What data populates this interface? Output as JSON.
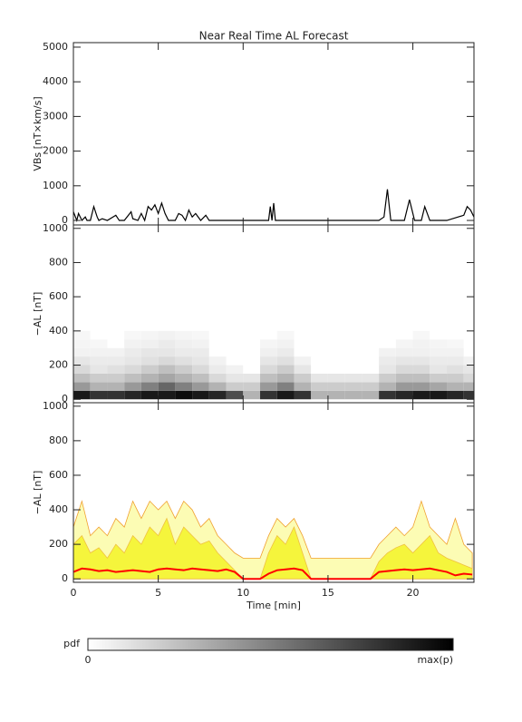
{
  "chart_data": [
    {
      "type": "line",
      "title": "Near Real Time AL Forecast",
      "y_label": "VBs [nT×km/s]",
      "xlim": [
        0,
        23.6
      ],
      "xticks": [
        0,
        5,
        10,
        15,
        20
      ],
      "ylim": [
        -130,
        5130
      ],
      "yticks": [
        0,
        1000,
        2000,
        3000,
        4000,
        5000
      ],
      "x": [
        0,
        0.2,
        0.3,
        0.5,
        0.7,
        0.8,
        1.0,
        1.2,
        1.4,
        1.5,
        1.7,
        2.0,
        2.5,
        2.7,
        3.0,
        3.4,
        3.5,
        3.8,
        4.0,
        4.2,
        4.4,
        4.6,
        4.8,
        5.0,
        5.2,
        5.4,
        5.6,
        6.0,
        6.2,
        6.4,
        6.6,
        6.8,
        7.0,
        7.2,
        7.5,
        7.8,
        8.0,
        11.5,
        11.6,
        11.7,
        11.8,
        11.9,
        12.5,
        18.0,
        18.3,
        18.5,
        18.7,
        19.5,
        19.8,
        20.1,
        20.5,
        20.7,
        21.0,
        22.0,
        23.0,
        23.2,
        23.4,
        23.6
      ],
      "series": [
        {
          "color": "#000000",
          "values": [
            250,
            0,
            200,
            0,
            100,
            0,
            0,
            400,
            100,
            0,
            50,
            0,
            150,
            0,
            0,
            250,
            50,
            0,
            200,
            0,
            400,
            300,
            450,
            200,
            500,
            200,
            0,
            0,
            200,
            150,
            0,
            300,
            100,
            200,
            0,
            150,
            0,
            0,
            400,
            0,
            500,
            0,
            0,
            0,
            100,
            900,
            0,
            0,
            600,
            0,
            0,
            400,
            0,
            0,
            150,
            400,
            300,
            100
          ]
        }
      ]
    },
    {
      "type": "heatmap",
      "y_label": "−AL [nT]",
      "xlim": [
        0,
        23.6
      ],
      "xticks": [
        0,
        5,
        10,
        15,
        20
      ],
      "ylim": [
        -20,
        1020
      ],
      "yticks": [
        0,
        200,
        400,
        600,
        800,
        1000
      ],
      "x_bins": [
        0,
        1,
        2,
        3,
        4,
        5,
        6,
        7,
        8,
        9,
        10,
        11,
        12,
        13,
        14,
        15,
        16,
        17,
        18,
        19,
        20,
        21,
        22,
        23,
        24
      ],
      "y_bins": [
        0,
        50,
        100,
        150,
        200,
        250,
        300,
        350,
        400
      ],
      "z": [
        [
          0.9,
          0.8,
          0.8,
          0.85,
          0.9,
          0.9,
          0.95,
          0.9,
          0.85,
          0.7,
          0.3,
          0.8,
          0.9,
          0.8,
          0.3,
          0.3,
          0.3,
          0.3,
          0.8,
          0.85,
          0.9,
          0.9,
          0.85,
          0.8
        ],
        [
          0.4,
          0.3,
          0.3,
          0.4,
          0.5,
          0.6,
          0.5,
          0.4,
          0.3,
          0.2,
          0.2,
          0.4,
          0.5,
          0.3,
          0.2,
          0.2,
          0.2,
          0.2,
          0.3,
          0.4,
          0.4,
          0.35,
          0.3,
          0.3
        ],
        [
          0.25,
          0.2,
          0.2,
          0.25,
          0.3,
          0.35,
          0.3,
          0.25,
          0.15,
          0.1,
          0.1,
          0.25,
          0.3,
          0.2,
          0.1,
          0.1,
          0.1,
          0.1,
          0.2,
          0.25,
          0.25,
          0.2,
          0.2,
          0.15
        ],
        [
          0.15,
          0.1,
          0.12,
          0.15,
          0.2,
          0.25,
          0.2,
          0.15,
          0.08,
          0.05,
          0,
          0.15,
          0.2,
          0.1,
          0,
          0,
          0,
          0,
          0.1,
          0.15,
          0.15,
          0.1,
          0.12,
          0.1
        ],
        [
          0.1,
          0.08,
          0.08,
          0.1,
          0.12,
          0.15,
          0.12,
          0.1,
          0.05,
          0,
          0,
          0.1,
          0.12,
          0.05,
          0,
          0,
          0,
          0,
          0.08,
          0.1,
          0.1,
          0.08,
          0.08,
          0.05
        ],
        [
          0.05,
          0.05,
          0.05,
          0.08,
          0.1,
          0.1,
          0.08,
          0.08,
          0,
          0,
          0,
          0.06,
          0.08,
          0,
          0,
          0,
          0,
          0,
          0.05,
          0.06,
          0.06,
          0.05,
          0.05,
          0
        ],
        [
          0.04,
          0.03,
          0,
          0.05,
          0.06,
          0.08,
          0.06,
          0.05,
          0,
          0,
          0,
          0.04,
          0.05,
          0,
          0,
          0,
          0,
          0,
          0,
          0.04,
          0.05,
          0.04,
          0.03,
          0
        ],
        [
          0.03,
          0,
          0,
          0.03,
          0.04,
          0.05,
          0.04,
          0.03,
          0,
          0,
          0,
          0,
          0.03,
          0,
          0,
          0,
          0,
          0,
          0,
          0,
          0.03,
          0,
          0,
          0
        ]
      ],
      "colorbar": {
        "label": "pdf",
        "min_label": "0",
        "max_label": "max(p)"
      }
    },
    {
      "type": "area",
      "y_label": "−AL [nT]",
      "x_label": "Time [min]",
      "xlim": [
        0,
        23.6
      ],
      "xticks": [
        0,
        5,
        10,
        15,
        20
      ],
      "ylim": [
        -20,
        1020
      ],
      "yticks": [
        0,
        200,
        400,
        600,
        800,
        1000
      ],
      "x": [
        0,
        0.5,
        1,
        1.5,
        2,
        2.5,
        3,
        3.5,
        4,
        4.5,
        5,
        5.5,
        6,
        6.5,
        7,
        7.5,
        8,
        8.5,
        9,
        9.5,
        10,
        10.5,
        11,
        11.5,
        12,
        12.5,
        13,
        13.5,
        14,
        14.5,
        15,
        15.5,
        16,
        16.5,
        17,
        17.5,
        18,
        18.5,
        19,
        19.5,
        20,
        20.5,
        21,
        21.5,
        22,
        22.5,
        23,
        23.5
      ],
      "series": [
        {
          "color": "#fcfcb4",
          "edge_color": "#f0a030",
          "fill": true,
          "values": [
            300,
            450,
            250,
            300,
            250,
            350,
            300,
            450,
            350,
            450,
            400,
            450,
            350,
            450,
            400,
            300,
            350,
            250,
            200,
            150,
            120,
            120,
            120,
            250,
            350,
            300,
            350,
            250,
            120,
            120,
            120,
            120,
            120,
            120,
            120,
            120,
            200,
            250,
            300,
            250,
            300,
            450,
            300,
            250,
            200,
            350,
            200,
            150
          ]
        },
        {
          "color": "#f5f53c",
          "edge_color": "#f0c040",
          "fill": true,
          "values": [
            200,
            250,
            150,
            180,
            120,
            200,
            150,
            250,
            200,
            300,
            250,
            350,
            200,
            300,
            250,
            200,
            220,
            150,
            100,
            50,
            0,
            0,
            0,
            150,
            250,
            200,
            300,
            150,
            0,
            0,
            0,
            0,
            0,
            0,
            0,
            0,
            100,
            150,
            180,
            200,
            150,
            200,
            250,
            150,
            120,
            100,
            80,
            60
          ]
        },
        {
          "color": "#ff0000",
          "fill": false,
          "values": [
            40,
            60,
            55,
            45,
            50,
            40,
            45,
            50,
            45,
            40,
            55,
            60,
            55,
            50,
            60,
            55,
            50,
            45,
            55,
            40,
            0,
            0,
            0,
            30,
            50,
            55,
            60,
            50,
            0,
            0,
            0,
            0,
            0,
            0,
            0,
            0,
            40,
            45,
            50,
            55,
            50,
            55,
            60,
            50,
            40,
            20,
            30,
            25
          ]
        }
      ]
    }
  ]
}
